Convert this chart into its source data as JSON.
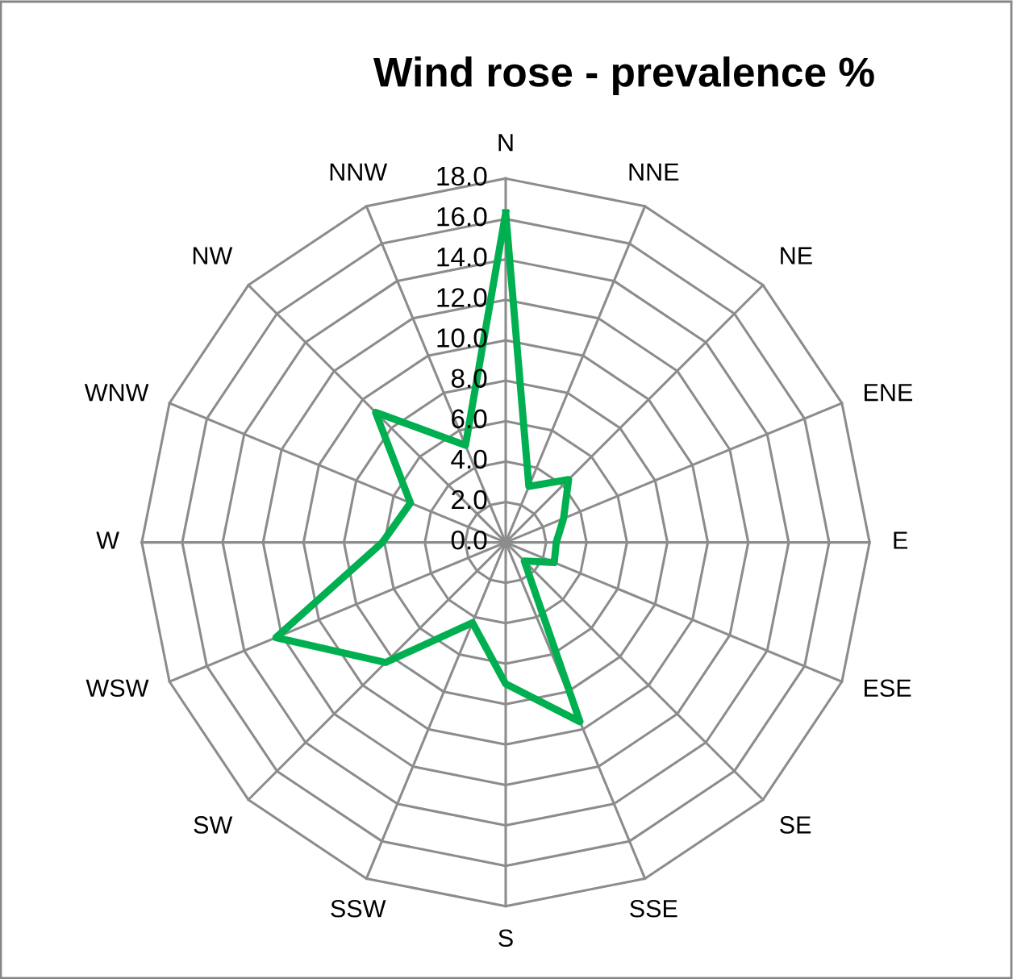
{
  "chart_data": {
    "type": "radar",
    "title": "Wind rose - prevalence %",
    "categories": [
      "N",
      "NNE",
      "NE",
      "ENE",
      "E",
      "ESE",
      "SE",
      "SSE",
      "S",
      "SSW",
      "SW",
      "WSW",
      "W",
      "WNW",
      "NW",
      "NNW"
    ],
    "series": [
      {
        "color": "#00b050",
        "values": [
          16.3,
          3.0,
          4.4,
          3.1,
          2.5,
          2.6,
          1.3,
          9.6,
          7.0,
          4.3,
          8.4,
          12.3,
          6.1,
          5.1,
          9.1,
          5.2
        ]
      }
    ],
    "ylim": [
      0,
      18
    ],
    "yticks": [
      {
        "value": 0,
        "label": "0.0"
      },
      {
        "value": 2,
        "label": "2.0"
      },
      {
        "value": 4,
        "label": "4.0"
      },
      {
        "value": 6,
        "label": "6.0"
      },
      {
        "value": 8,
        "label": "8.0"
      },
      {
        "value": 10,
        "label": "10.0"
      },
      {
        "value": 12,
        "label": "12.0"
      },
      {
        "value": 14,
        "label": "14.0"
      },
      {
        "value": 16,
        "label": "16.0"
      },
      {
        "value": 18,
        "label": "18.0"
      }
    ],
    "grid": true
  }
}
